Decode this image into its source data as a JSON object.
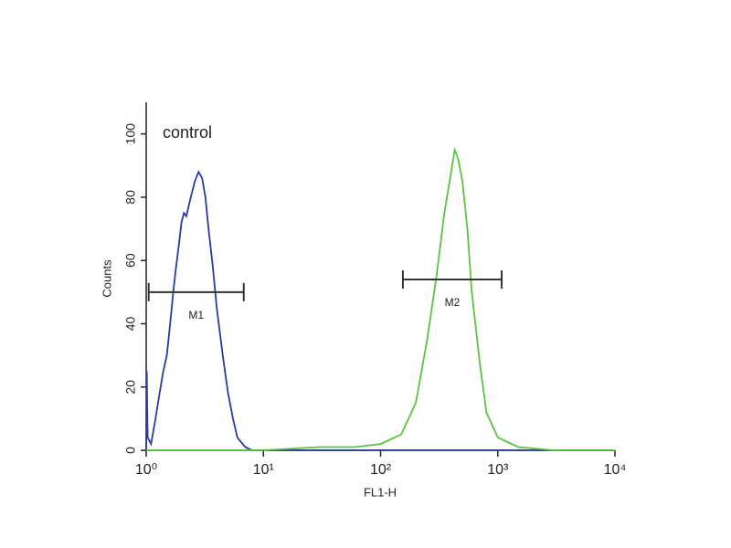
{
  "chart_data": {
    "type": "line",
    "annotation": "control",
    "xlabel": "FL1-H",
    "ylabel": "Counts",
    "xscale": "log",
    "xlim": [
      1,
      10000
    ],
    "xticks": [
      {
        "value": 1,
        "label": "10⁰"
      },
      {
        "value": 10,
        "label": "10¹"
      },
      {
        "value": 100,
        "label": "10²"
      },
      {
        "value": 1000,
        "label": "10³"
      },
      {
        "value": 10000,
        "label": "10⁴"
      }
    ],
    "ylim": [
      0,
      110
    ],
    "yticks": [
      0,
      20,
      40,
      60,
      80,
      100
    ],
    "series": [
      {
        "color": "#2b3a9c",
        "x": [
          1,
          1.01,
          1.03,
          1.1,
          1.2,
          1.3,
          1.4,
          1.5,
          1.6,
          1.7,
          1.8,
          1.9,
          2.0,
          2.1,
          2.2,
          2.4,
          2.6,
          2.8,
          3.0,
          3.2,
          3.4,
          3.7,
          4.0,
          4.5,
          5.0,
          5.5,
          6.0,
          7,
          8,
          10,
          100,
          1000,
          10000
        ],
        "values": [
          0,
          25,
          4,
          2,
          10,
          18,
          25,
          30,
          40,
          50,
          58,
          65,
          72,
          75,
          74,
          80,
          85,
          88,
          86,
          80,
          70,
          58,
          45,
          30,
          18,
          10,
          4,
          1,
          0,
          0,
          0,
          0,
          0
        ]
      },
      {
        "color": "#5cc242",
        "x": [
          1,
          10,
          30,
          60,
          100,
          150,
          200,
          250,
          300,
          350,
          400,
          430,
          460,
          500,
          550,
          600,
          700,
          800,
          1000,
          1500,
          3000,
          10000
        ],
        "values": [
          0,
          0,
          1,
          1,
          2,
          5,
          15,
          35,
          55,
          75,
          88,
          95,
          92,
          85,
          70,
          50,
          28,
          12,
          4,
          1,
          0,
          0
        ]
      }
    ],
    "markers": [
      {
        "label": "M1",
        "range": [
          1.05,
          6.8
        ],
        "y": 50
      },
      {
        "label": "M2",
        "range": [
          155,
          1080
        ],
        "y": 54
      }
    ]
  }
}
